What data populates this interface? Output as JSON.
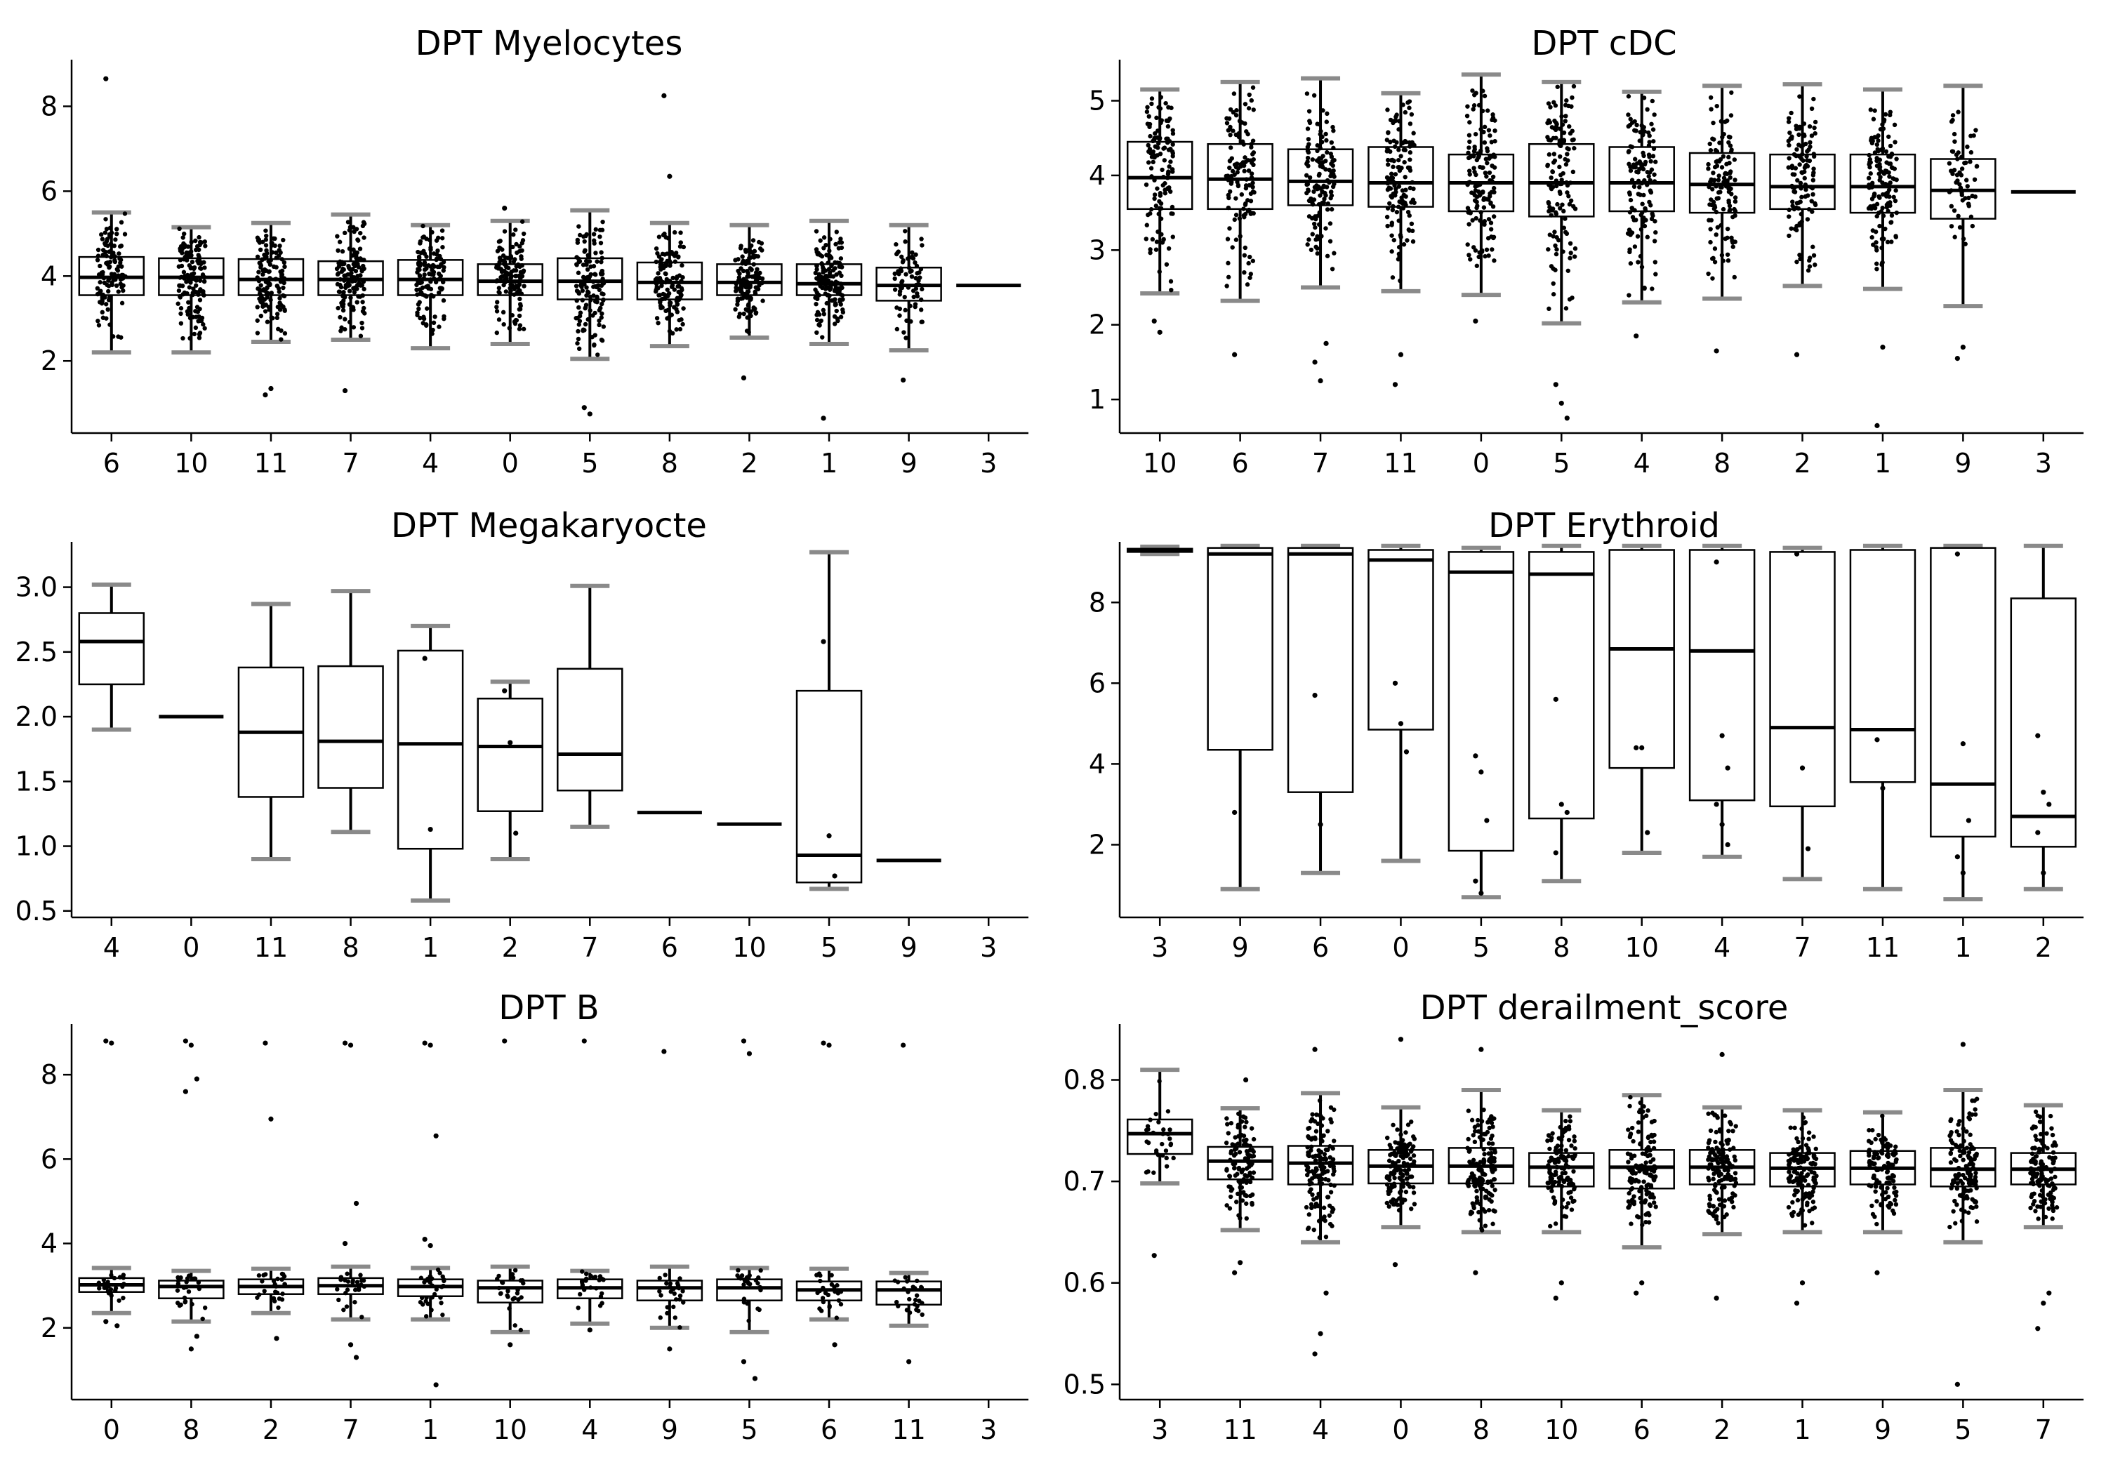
{
  "chart_data": [
    {
      "type": "box",
      "title": "DPT Myelocytes",
      "ylim": [
        0.3,
        9.1
      ],
      "yticks": [
        2,
        4,
        6,
        8
      ],
      "tick_labels": [
        "2",
        "4",
        "6",
        "8"
      ],
      "points_overlay": true,
      "categories": [
        "6",
        "10",
        "11",
        "7",
        "4",
        "0",
        "5",
        "8",
        "2",
        "1",
        "9",
        "3"
      ],
      "boxes": [
        {
          "q1": 3.55,
          "median": 3.97,
          "q3": 4.45,
          "wlo": 2.2,
          "whi": 5.5,
          "n": 110,
          "outliers": [
            8.65
          ]
        },
        {
          "q1": 3.55,
          "median": 3.97,
          "q3": 4.42,
          "wlo": 2.2,
          "whi": 5.15,
          "n": 130,
          "outliers": []
        },
        {
          "q1": 3.55,
          "median": 3.92,
          "q3": 4.4,
          "wlo": 2.45,
          "whi": 5.25,
          "n": 130,
          "outliers": [
            1.2,
            1.35
          ]
        },
        {
          "q1": 3.55,
          "median": 3.92,
          "q3": 4.35,
          "wlo": 2.5,
          "whi": 5.45,
          "n": 130,
          "outliers": [
            1.3
          ]
        },
        {
          "q1": 3.55,
          "median": 3.92,
          "q3": 4.38,
          "wlo": 2.3,
          "whi": 5.2,
          "n": 120,
          "outliers": []
        },
        {
          "q1": 3.55,
          "median": 3.88,
          "q3": 4.28,
          "wlo": 2.4,
          "whi": 5.3,
          "n": 130,
          "outliers": [
            5.6
          ]
        },
        {
          "q1": 3.45,
          "median": 3.88,
          "q3": 4.42,
          "wlo": 2.05,
          "whi": 5.55,
          "n": 130,
          "outliers": [
            0.9,
            0.75
          ]
        },
        {
          "q1": 3.45,
          "median": 3.85,
          "q3": 4.32,
          "wlo": 2.35,
          "whi": 5.25,
          "n": 120,
          "outliers": [
            8.25,
            6.35
          ]
        },
        {
          "q1": 3.55,
          "median": 3.85,
          "q3": 4.28,
          "wlo": 2.55,
          "whi": 5.2,
          "n": 120,
          "outliers": [
            1.6
          ]
        },
        {
          "q1": 3.55,
          "median": 3.82,
          "q3": 4.28,
          "wlo": 2.4,
          "whi": 5.3,
          "n": 140,
          "outliers": [
            0.65
          ]
        },
        {
          "q1": 3.42,
          "median": 3.78,
          "q3": 4.2,
          "wlo": 2.25,
          "whi": 5.2,
          "n": 70,
          "outliers": [
            1.55
          ]
        },
        {
          "q1": 3.78,
          "median": 3.78,
          "q3": 3.78,
          "wlo": 3.78,
          "whi": 3.78,
          "n": 0,
          "outliers": []
        }
      ]
    },
    {
      "type": "box",
      "title": "DPT cDC",
      "ylim": [
        0.55,
        5.55
      ],
      "yticks": [
        1,
        2,
        3,
        4,
        5
      ],
      "tick_labels": [
        "1",
        "2",
        "3",
        "4",
        "5"
      ],
      "points_overlay": true,
      "categories": [
        "10",
        "6",
        "7",
        "11",
        "0",
        "5",
        "4",
        "8",
        "2",
        "1",
        "9",
        "3"
      ],
      "boxes": [
        {
          "q1": 3.55,
          "median": 3.97,
          "q3": 4.45,
          "wlo": 2.42,
          "whi": 5.15,
          "n": 120,
          "outliers": [
            2.05,
            1.9
          ]
        },
        {
          "q1": 3.55,
          "median": 3.95,
          "q3": 4.42,
          "wlo": 2.32,
          "whi": 5.25,
          "n": 120,
          "outliers": [
            1.6
          ]
        },
        {
          "q1": 3.6,
          "median": 3.92,
          "q3": 4.35,
          "wlo": 2.5,
          "whi": 5.3,
          "n": 130,
          "outliers": [
            1.5,
            1.25,
            1.75
          ]
        },
        {
          "q1": 3.58,
          "median": 3.9,
          "q3": 4.38,
          "wlo": 2.45,
          "whi": 5.1,
          "n": 130,
          "outliers": [
            1.2,
            1.6
          ]
        },
        {
          "q1": 3.52,
          "median": 3.9,
          "q3": 4.28,
          "wlo": 2.4,
          "whi": 5.35,
          "n": 140,
          "outliers": [
            2.05
          ]
        },
        {
          "q1": 3.45,
          "median": 3.9,
          "q3": 4.42,
          "wlo": 2.02,
          "whi": 5.25,
          "n": 130,
          "outliers": [
            1.2,
            0.95,
            0.75
          ]
        },
        {
          "q1": 3.52,
          "median": 3.9,
          "q3": 4.38,
          "wlo": 2.3,
          "whi": 5.12,
          "n": 130,
          "outliers": [
            1.85
          ]
        },
        {
          "q1": 3.5,
          "median": 3.88,
          "q3": 4.3,
          "wlo": 2.35,
          "whi": 5.2,
          "n": 120,
          "outliers": [
            1.65
          ]
        },
        {
          "q1": 3.55,
          "median": 3.85,
          "q3": 4.28,
          "wlo": 2.52,
          "whi": 5.22,
          "n": 120,
          "outliers": [
            1.6
          ]
        },
        {
          "q1": 3.5,
          "median": 3.85,
          "q3": 4.28,
          "wlo": 2.48,
          "whi": 5.15,
          "n": 140,
          "outliers": [
            0.65,
            1.7
          ]
        },
        {
          "q1": 3.42,
          "median": 3.8,
          "q3": 4.22,
          "wlo": 2.25,
          "whi": 5.2,
          "n": 60,
          "outliers": [
            1.55,
            1.7
          ]
        },
        {
          "q1": 3.78,
          "median": 3.78,
          "q3": 3.78,
          "wlo": 3.78,
          "whi": 3.78,
          "n": 0,
          "outliers": []
        }
      ]
    },
    {
      "type": "box",
      "title": "DPT Megakaryocte",
      "ylim": [
        0.45,
        3.35
      ],
      "yticks": [
        0.5,
        1.0,
        1.5,
        2.0,
        2.5,
        3.0
      ],
      "tick_labels": [
        "0.5",
        "1.0",
        "1.5",
        "2.0",
        "2.5",
        "3.0"
      ],
      "points_overlay": false,
      "categories": [
        "4",
        "0",
        "11",
        "8",
        "1",
        "2",
        "7",
        "6",
        "10",
        "5",
        "9",
        "3"
      ],
      "boxes": [
        {
          "q1": 2.25,
          "median": 2.58,
          "q3": 2.8,
          "wlo": 1.9,
          "whi": 3.02,
          "n": 0,
          "outliers": []
        },
        {
          "q1": 2.0,
          "median": 2.0,
          "q3": 2.0,
          "wlo": 2.0,
          "whi": 2.0,
          "n": 0,
          "outliers": []
        },
        {
          "q1": 1.38,
          "median": 1.88,
          "q3": 2.38,
          "wlo": 0.9,
          "whi": 2.87,
          "n": 0,
          "outliers": []
        },
        {
          "q1": 1.45,
          "median": 1.81,
          "q3": 2.39,
          "wlo": 1.11,
          "whi": 2.97,
          "n": 0,
          "outliers": []
        },
        {
          "q1": 0.98,
          "median": 1.79,
          "q3": 2.51,
          "wlo": 0.58,
          "whi": 2.7,
          "n": 0,
          "outliers": [
            2.45,
            1.13
          ]
        },
        {
          "q1": 1.27,
          "median": 1.77,
          "q3": 2.14,
          "wlo": 0.9,
          "whi": 2.27,
          "n": 0,
          "outliers": [
            2.2,
            1.8,
            1.1
          ]
        },
        {
          "q1": 1.43,
          "median": 1.71,
          "q3": 2.37,
          "wlo": 1.15,
          "whi": 3.01,
          "n": 0,
          "outliers": []
        },
        {
          "q1": 1.26,
          "median": 1.26,
          "q3": 1.26,
          "wlo": 1.26,
          "whi": 1.26,
          "n": 0,
          "outliers": []
        },
        {
          "q1": 1.17,
          "median": 1.17,
          "q3": 1.17,
          "wlo": 1.17,
          "whi": 1.17,
          "n": 0,
          "outliers": []
        },
        {
          "q1": 0.72,
          "median": 0.93,
          "q3": 2.2,
          "wlo": 0.67,
          "whi": 3.27,
          "n": 0,
          "outliers": [
            2.58,
            1.08,
            0.77
          ]
        },
        {
          "q1": 0.89,
          "median": 0.89,
          "q3": 0.89,
          "wlo": 0.89,
          "whi": 0.89,
          "n": 0,
          "outliers": []
        },
        null
      ]
    },
    {
      "type": "box",
      "title": "DPT Erythroid",
      "ylim": [
        0.2,
        9.5
      ],
      "yticks": [
        2,
        4,
        6,
        8
      ],
      "tick_labels": [
        "2",
        "4",
        "6",
        "8"
      ],
      "points_overlay": false,
      "categories": [
        "3",
        "9",
        "6",
        "0",
        "5",
        "8",
        "10",
        "4",
        "7",
        "11",
        "1",
        "2"
      ],
      "boxes": [
        {
          "q1": 9.25,
          "median": 9.3,
          "q3": 9.33,
          "wlo": 9.2,
          "whi": 9.38,
          "n": 0,
          "outliers": []
        },
        {
          "q1": 4.35,
          "median": 9.2,
          "q3": 9.35,
          "wlo": 0.9,
          "whi": 9.4,
          "n": 0,
          "outliers": [
            2.8
          ]
        },
        {
          "q1": 3.3,
          "median": 9.2,
          "q3": 9.35,
          "wlo": 1.3,
          "whi": 9.4,
          "n": 0,
          "outliers": [
            5.7,
            2.5
          ]
        },
        {
          "q1": 4.85,
          "median": 9.05,
          "q3": 9.3,
          "wlo": 1.6,
          "whi": 9.4,
          "n": 0,
          "outliers": [
            6.0,
            5.0,
            4.3
          ]
        },
        {
          "q1": 1.85,
          "median": 8.75,
          "q3": 9.25,
          "wlo": 0.7,
          "whi": 9.35,
          "n": 0,
          "outliers": [
            4.2,
            3.8,
            2.6,
            1.1,
            0.8
          ]
        },
        {
          "q1": 2.65,
          "median": 8.7,
          "q3": 9.25,
          "wlo": 1.1,
          "whi": 9.4,
          "n": 0,
          "outliers": [
            5.6,
            3.0,
            2.8,
            1.8
          ]
        },
        {
          "q1": 3.9,
          "median": 6.85,
          "q3": 9.3,
          "wlo": 1.8,
          "whi": 9.4,
          "n": 0,
          "outliers": [
            4.4,
            4.4,
            2.3
          ]
        },
        {
          "q1": 3.1,
          "median": 6.8,
          "q3": 9.3,
          "wlo": 1.7,
          "whi": 9.4,
          "n": 0,
          "outliers": [
            9.0,
            4.7,
            3.9,
            3.0,
            2.5,
            2.0
          ]
        },
        {
          "q1": 2.95,
          "median": 4.9,
          "q3": 9.25,
          "wlo": 1.15,
          "whi": 9.35,
          "n": 0,
          "outliers": [
            9.2,
            3.9,
            1.9
          ]
        },
        {
          "q1": 3.55,
          "median": 4.85,
          "q3": 9.3,
          "wlo": 0.9,
          "whi": 9.4,
          "n": 0,
          "outliers": [
            4.6,
            3.4
          ]
        },
        {
          "q1": 2.2,
          "median": 3.5,
          "q3": 9.35,
          "wlo": 0.65,
          "whi": 9.4,
          "n": 0,
          "outliers": [
            9.2,
            4.5,
            2.6,
            1.7,
            1.3
          ]
        },
        {
          "q1": 1.95,
          "median": 2.7,
          "q3": 8.1,
          "wlo": 0.9,
          "whi": 9.4,
          "n": 0,
          "outliers": [
            4.7,
            3.3,
            3.0,
            2.3,
            1.3
          ]
        }
      ]
    },
    {
      "type": "box",
      "title": "DPT B",
      "ylim": [
        0.3,
        9.2
      ],
      "yticks": [
        2,
        4,
        6,
        8
      ],
      "tick_labels": [
        "2",
        "4",
        "6",
        "8"
      ],
      "points_overlay": true,
      "categories": [
        "0",
        "8",
        "2",
        "7",
        "1",
        "10",
        "4",
        "9",
        "5",
        "6",
        "11",
        "3"
      ],
      "boxes": [
        {
          "q1": 2.85,
          "median": 3.02,
          "q3": 3.18,
          "wlo": 2.35,
          "whi": 3.42,
          "n": 25,
          "outliers": [
            8.8,
            8.75,
            2.05,
            2.15
          ]
        },
        {
          "q1": 2.7,
          "median": 2.98,
          "q3": 3.12,
          "wlo": 2.15,
          "whi": 3.35,
          "n": 25,
          "outliers": [
            8.8,
            8.7,
            7.9,
            7.6,
            1.5,
            1.8
          ]
        },
        {
          "q1": 2.8,
          "median": 2.98,
          "q3": 3.15,
          "wlo": 2.35,
          "whi": 3.4,
          "n": 25,
          "outliers": [
            8.75,
            6.95,
            1.75
          ]
        },
        {
          "q1": 2.8,
          "median": 3.0,
          "q3": 3.18,
          "wlo": 2.2,
          "whi": 3.45,
          "n": 25,
          "outliers": [
            8.75,
            8.7,
            4.95,
            4.0,
            1.6,
            1.3
          ]
        },
        {
          "q1": 2.75,
          "median": 2.98,
          "q3": 3.15,
          "wlo": 2.2,
          "whi": 3.42,
          "n": 30,
          "outliers": [
            8.75,
            8.7,
            6.55,
            4.1,
            3.95,
            0.65
          ]
        },
        {
          "q1": 2.6,
          "median": 2.95,
          "q3": 3.12,
          "wlo": 1.9,
          "whi": 3.45,
          "n": 25,
          "outliers": [
            8.8,
            1.6
          ]
        },
        {
          "q1": 2.7,
          "median": 2.95,
          "q3": 3.15,
          "wlo": 2.1,
          "whi": 3.35,
          "n": 25,
          "outliers": [
            8.8,
            1.95
          ]
        },
        {
          "q1": 2.65,
          "median": 2.95,
          "q3": 3.12,
          "wlo": 2.0,
          "whi": 3.45,
          "n": 25,
          "outliers": [
            8.55,
            1.5
          ]
        },
        {
          "q1": 2.65,
          "median": 2.95,
          "q3": 3.15,
          "wlo": 1.9,
          "whi": 3.42,
          "n": 25,
          "outliers": [
            8.8,
            8.5,
            0.8,
            1.2
          ]
        },
        {
          "q1": 2.65,
          "median": 2.9,
          "q3": 3.1,
          "wlo": 2.2,
          "whi": 3.4,
          "n": 25,
          "outliers": [
            8.75,
            8.7,
            1.6
          ]
        },
        {
          "q1": 2.55,
          "median": 2.9,
          "q3": 3.1,
          "wlo": 2.05,
          "whi": 3.3,
          "n": 25,
          "outliers": [
            8.7,
            1.2
          ]
        },
        null
      ]
    },
    {
      "type": "box",
      "title": "DPT derailment_score",
      "ylim": [
        0.485,
        0.855
      ],
      "yticks": [
        0.5,
        0.6,
        0.7,
        0.8
      ],
      "tick_labels": [
        "0.5",
        "0.6",
        "0.7",
        "0.8"
      ],
      "points_overlay": true,
      "categories": [
        "3",
        "11",
        "4",
        "0",
        "8",
        "10",
        "6",
        "2",
        "1",
        "9",
        "5",
        "7"
      ],
      "boxes": [
        {
          "q1": 0.727,
          "median": 0.747,
          "q3": 0.761,
          "wlo": 0.698,
          "whi": 0.81,
          "n": 30,
          "outliers": [
            0.627
          ]
        },
        {
          "q1": 0.702,
          "median": 0.72,
          "q3": 0.734,
          "wlo": 0.652,
          "whi": 0.772,
          "n": 110,
          "outliers": [
            0.61,
            0.62,
            0.8
          ]
        },
        {
          "q1": 0.697,
          "median": 0.718,
          "q3": 0.735,
          "wlo": 0.64,
          "whi": 0.787,
          "n": 140,
          "outliers": [
            0.53,
            0.55,
            0.59,
            0.83
          ]
        },
        {
          "q1": 0.698,
          "median": 0.715,
          "q3": 0.731,
          "wlo": 0.655,
          "whi": 0.773,
          "n": 130,
          "outliers": [
            0.618,
            0.84
          ]
        },
        {
          "q1": 0.698,
          "median": 0.715,
          "q3": 0.733,
          "wlo": 0.65,
          "whi": 0.79,
          "n": 140,
          "outliers": [
            0.61,
            0.83
          ]
        },
        {
          "q1": 0.695,
          "median": 0.714,
          "q3": 0.728,
          "wlo": 0.65,
          "whi": 0.77,
          "n": 130,
          "outliers": [
            0.585,
            0.6
          ]
        },
        {
          "q1": 0.693,
          "median": 0.714,
          "q3": 0.731,
          "wlo": 0.635,
          "whi": 0.785,
          "n": 130,
          "outliers": [
            0.59,
            0.6
          ]
        },
        {
          "q1": 0.697,
          "median": 0.714,
          "q3": 0.731,
          "wlo": 0.648,
          "whi": 0.773,
          "n": 140,
          "outliers": [
            0.585,
            0.825
          ]
        },
        {
          "q1": 0.695,
          "median": 0.713,
          "q3": 0.728,
          "wlo": 0.65,
          "whi": 0.77,
          "n": 140,
          "outliers": [
            0.58,
            0.6
          ]
        },
        {
          "q1": 0.697,
          "median": 0.713,
          "q3": 0.73,
          "wlo": 0.65,
          "whi": 0.768,
          "n": 110,
          "outliers": [
            0.61
          ]
        },
        {
          "q1": 0.695,
          "median": 0.712,
          "q3": 0.733,
          "wlo": 0.64,
          "whi": 0.79,
          "n": 130,
          "outliers": [
            0.5,
            0.835
          ]
        },
        {
          "q1": 0.697,
          "median": 0.712,
          "q3": 0.728,
          "wlo": 0.655,
          "whi": 0.775,
          "n": 130,
          "outliers": [
            0.555,
            0.58,
            0.59
          ]
        }
      ]
    }
  ]
}
